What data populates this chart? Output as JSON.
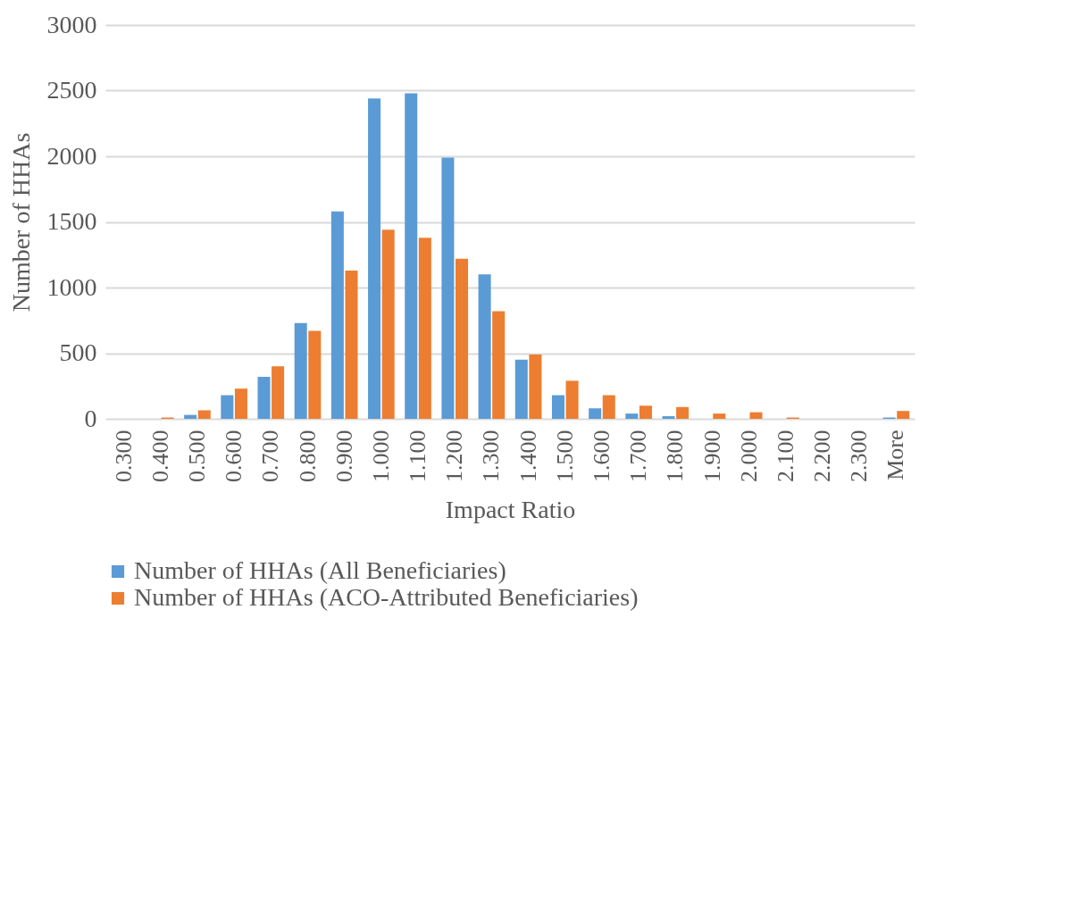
{
  "chart_data": {
    "type": "bar",
    "xlabel": "Impact Ratio",
    "ylabel": "Number of HHAs",
    "categories": [
      "0.300",
      "0.400",
      "0.500",
      "0.600",
      "0.700",
      "0.800",
      "0.900",
      "1.000",
      "1.100",
      "1.200",
      "1.300",
      "1.400",
      "1.500",
      "1.600",
      "1.700",
      "1.800",
      "1.900",
      "2.000",
      "2.100",
      "2.200",
      "2.300",
      "More"
    ],
    "series": [
      {
        "name": "Number of HHAs (All Beneficiaries)",
        "color": "#5b9bd5",
        "values": [
          0,
          0,
          30,
          180,
          320,
          730,
          1580,
          2440,
          2480,
          1990,
          1100,
          450,
          180,
          80,
          40,
          20,
          0,
          0,
          0,
          0,
          0,
          10
        ]
      },
      {
        "name": "Number of HHAs (ACO-Attributed Beneficiaries)",
        "color": "#ed7d31",
        "values": [
          0,
          10,
          65,
          230,
          400,
          670,
          1130,
          1440,
          1380,
          1220,
          820,
          490,
          290,
          180,
          100,
          90,
          40,
          50,
          10,
          0,
          0,
          60
        ]
      }
    ],
    "ylim": [
      0,
      3000
    ],
    "yticks": [
      0,
      500,
      1000,
      1500,
      2000,
      2500,
      3000
    ],
    "grid": "y",
    "legend": "bottom"
  }
}
